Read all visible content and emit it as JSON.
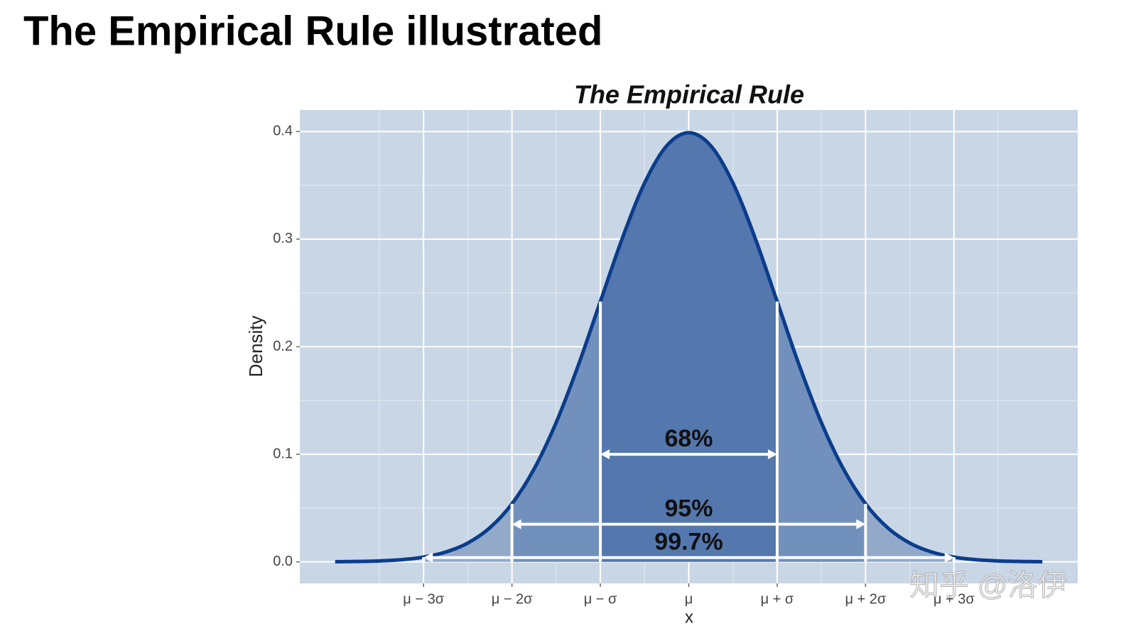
{
  "title": "The Empirical Rule illustrated",
  "watermark": "知乎 @洛伊",
  "chart_data": {
    "type": "density",
    "title": "The Empirical Rule",
    "x_label": "x",
    "y_label": "Density",
    "x": [
      -4,
      -3.75,
      -3.5,
      -3.25,
      -3,
      -2.75,
      -2.5,
      -2.25,
      -2,
      -1.75,
      -1.5,
      -1.25,
      -1,
      -0.75,
      -0.5,
      -0.25,
      0,
      0.25,
      0.5,
      0.75,
      1,
      1.25,
      1.5,
      1.75,
      2,
      2.25,
      2.5,
      2.75,
      3,
      3.25,
      3.5,
      3.75,
      4
    ],
    "series": [
      {
        "color": "#0b3d8c",
        "values": [
          0.0001,
          0.0004,
          0.0009,
          0.002,
          0.0044,
          0.0091,
          0.0175,
          0.0317,
          0.054,
          0.0863,
          0.1295,
          0.1826,
          0.242,
          0.3011,
          0.3521,
          0.3867,
          0.3989,
          0.3867,
          0.3521,
          0.3011,
          0.242,
          0.1826,
          0.1295,
          0.0863,
          0.054,
          0.0317,
          0.0175,
          0.0091,
          0.0044,
          0.002,
          0.0009,
          0.0004,
          0.0001
        ]
      }
    ],
    "xlim": [
      -4.4,
      4.4
    ],
    "ylim": [
      -0.02,
      0.42
    ],
    "xticks": [
      {
        "value": -3,
        "label": "μ − 3σ"
      },
      {
        "value": -2,
        "label": "μ − 2σ"
      },
      {
        "value": -1,
        "label": "μ − σ"
      },
      {
        "value": 0,
        "label": "μ"
      },
      {
        "value": 1,
        "label": "μ + σ"
      },
      {
        "value": 2,
        "label": "μ + 2σ"
      },
      {
        "value": 3,
        "label": "μ + 3σ"
      }
    ],
    "yticks": [
      {
        "value": 0,
        "label": "0.0"
      },
      0.1,
      0.2,
      0.3,
      0.4
    ],
    "grid": true,
    "minor_grid": true,
    "panel_color": "#c9d6e5",
    "regions": [
      {
        "from": -3,
        "to": 3,
        "label": "99.7%",
        "arrow_y": 0.004,
        "fill": "#92a9ca"
      },
      {
        "from": -2,
        "to": 2,
        "label": "95%",
        "arrow_y": 0.035,
        "fill": "#7190bc"
      },
      {
        "from": -1,
        "to": 1,
        "label": "68%",
        "arrow_y": 0.1,
        "fill": "#5477ae"
      }
    ]
  }
}
